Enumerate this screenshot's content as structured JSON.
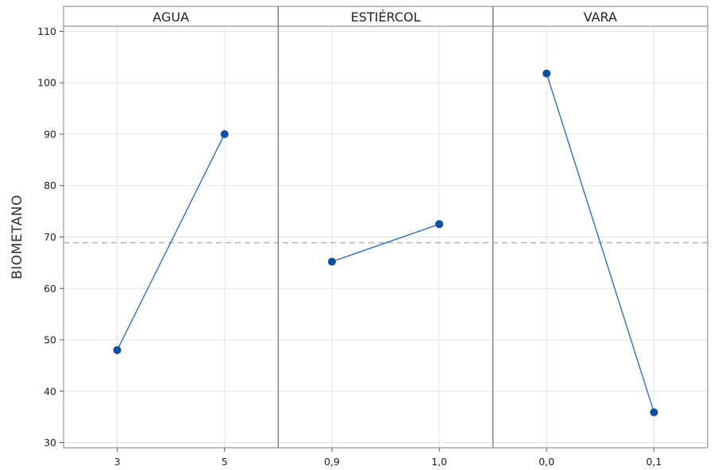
{
  "chart_data": {
    "type": "line",
    "ylabel": "BIOMETANO",
    "ylim": [
      29,
      111
    ],
    "y_ticks": [
      30,
      40,
      50,
      60,
      70,
      80,
      90,
      100,
      110
    ],
    "mean_reference": 68.9,
    "grid": true,
    "panels": [
      {
        "title": "AGUA",
        "categories": [
          "3",
          "5"
        ],
        "values": [
          48,
          90
        ]
      },
      {
        "title": "ESTIÉRCOL",
        "categories": [
          "0,9",
          "1,0"
        ],
        "values": [
          65.2,
          72.5
        ]
      },
      {
        "title": "VARA",
        "categories": [
          "0,0",
          "0,1"
        ],
        "values": [
          101.8,
          35.9
        ]
      }
    ],
    "colors": {
      "line": "#2f6fc1",
      "marker": "#0a4ea4",
      "reference": "#b3b3b3",
      "grid": "#e4e4e4"
    }
  }
}
